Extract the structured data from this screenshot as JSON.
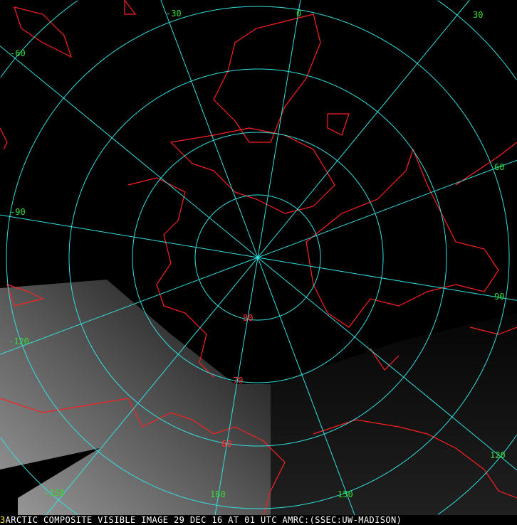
{
  "caption": {
    "frame_number": "3",
    "text": "ARCTIC COMPOSITE VISIBLE IMAGE 29 DEC 16 AT 01 UTC AMRC:(SSEC:UW-MADISON)"
  },
  "grid": {
    "line_color": "#33e0e0",
    "coastline_color": "#ff2020",
    "label_color": "#33dd33",
    "latitude_labels": [
      "80",
      "70",
      "60"
    ],
    "longitude_labels": [
      "-30",
      "0",
      "30",
      "-60",
      "60",
      "-90",
      "90",
      "-120",
      "120",
      "-150",
      "180",
      "150"
    ]
  }
}
